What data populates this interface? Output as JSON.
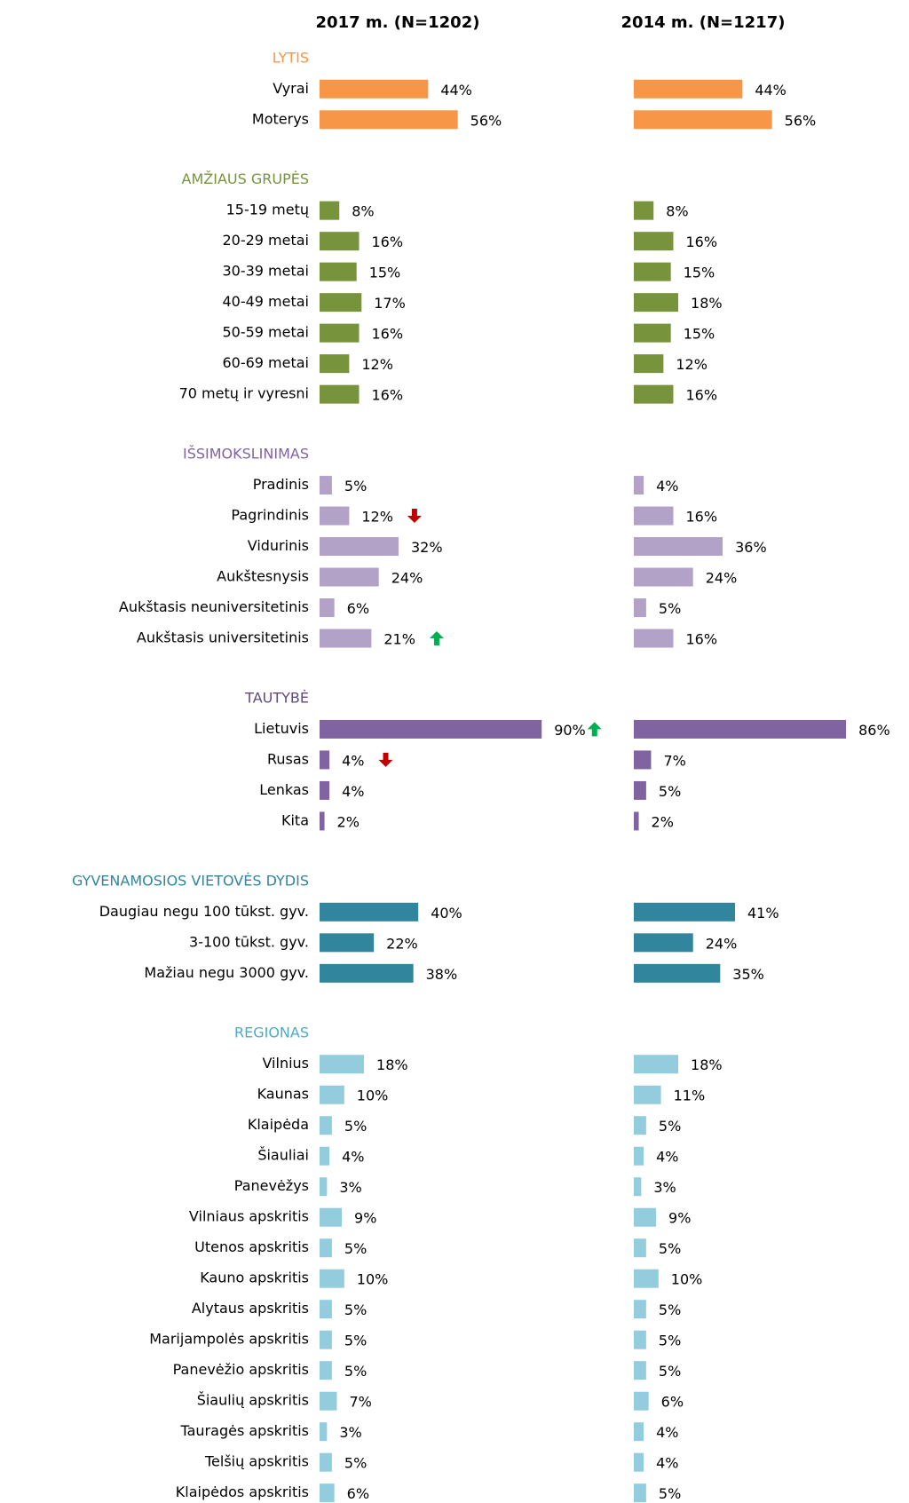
{
  "chart_data": {
    "type": "bar",
    "orientation": "horizontal",
    "columns": [
      "2017 m. (N=1202)",
      "2014 m. (N=1217)"
    ],
    "groups": [
      {
        "title": "LYTIS",
        "title_color": "#f79646",
        "color": "#f79646",
        "categories": [
          "Vyrai",
          "Moterys"
        ],
        "series": [
          {
            "values": [
              44,
              56
            ],
            "value_labels": [
              "44%",
              "56%"
            ],
            "trend": [
              null,
              null
            ]
          },
          {
            "values": [
              44,
              56
            ],
            "value_labels": [
              "44%",
              "56%"
            ]
          }
        ]
      },
      {
        "title": "AMŽIAUS GRUPĖS",
        "title_color": "#77933c",
        "color": "#77933c",
        "categories": [
          "15-19 metų",
          "20-29 metai",
          "30-39 metai",
          "40-49 metai",
          "50-59 metai",
          "60-69 metai",
          "70 metų ir vyresni"
        ],
        "series": [
          {
            "values": [
              8,
              16,
              15,
              17,
              16,
              12,
              16
            ],
            "value_labels": [
              "8%",
              "16%",
              "15%",
              "17%",
              "16%",
              "12%",
              "16%"
            ],
            "trend": [
              null,
              null,
              null,
              null,
              null,
              null,
              null
            ]
          },
          {
            "values": [
              8,
              16,
              15,
              18,
              15,
              12,
              16
            ],
            "value_labels": [
              "8%",
              "16%",
              "15%",
              "18%",
              "15%",
              "12%",
              "16%"
            ]
          }
        ]
      },
      {
        "title": "IŠSIMOKSLINIMAS",
        "title_color": "#8064a2",
        "color": "#b3a2c7",
        "categories": [
          "Pradinis",
          "Pagrindinis",
          "Vidurinis",
          "Aukštesnysis",
          "Aukštasis neuniversitetinis",
          "Aukštasis universitetinis"
        ],
        "series": [
          {
            "values": [
              5,
              12,
              32,
              24,
              6,
              21
            ],
            "value_labels": [
              "5%",
              "12%",
              "32%",
              "24%",
              "6%",
              "21%"
            ],
            "trend": [
              null,
              "down",
              null,
              null,
              null,
              "up"
            ]
          },
          {
            "values": [
              4,
              16,
              36,
              24,
              5,
              16
            ],
            "value_labels": [
              "4%",
              "16%",
              "36%",
              "24%",
              "5%",
              "16%"
            ]
          }
        ]
      },
      {
        "title": "TAUTYBĖ",
        "title_color": "#604a7b",
        "color": "#8064a2",
        "categories": [
          "Lietuvis",
          "Rusas",
          "Lenkas",
          "Kita"
        ],
        "series": [
          {
            "values": [
              90,
              4,
              4,
              2
            ],
            "value_labels": [
              "90%",
              "4%",
              "4%",
              "2%"
            ],
            "trend": [
              "up",
              "down",
              null,
              null
            ]
          },
          {
            "values": [
              86,
              7,
              5,
              2
            ],
            "value_labels": [
              "86%",
              "7%",
              "5%",
              "2%"
            ]
          }
        ]
      },
      {
        "title": "GYVENAMOSIOS VIETOVĖS DYDIS",
        "title_color": "#31859c",
        "color": "#31859c",
        "categories": [
          "Daugiau negu 100 tūkst. gyv.",
          "3-100 tūkst. gyv.",
          "Mažiau negu 3000 gyv."
        ],
        "series": [
          {
            "values": [
              40,
              22,
              38
            ],
            "value_labels": [
              "40%",
              "22%",
              "38%"
            ],
            "trend": [
              null,
              null,
              null
            ]
          },
          {
            "values": [
              41,
              24,
              35
            ],
            "value_labels": [
              "41%",
              "24%",
              "35%"
            ]
          }
        ]
      },
      {
        "title": "REGIONAS",
        "title_color": "#4bacc6",
        "color": "#93cddd",
        "categories": [
          "Vilnius",
          "Kaunas",
          "Klaipėda",
          "Šiauliai",
          "Panevėžys",
          "Vilniaus apskritis",
          "Utenos apskritis",
          "Kauno apskritis",
          "Alytaus apskritis",
          "Marijampolės apskritis",
          "Panevėžio apskritis",
          "Šiaulių apskritis",
          "Tauragės apskritis",
          "Telšių apskritis",
          "Klaipėdos apskritis"
        ],
        "series": [
          {
            "values": [
              18,
              10,
              5,
              4,
              3,
              9,
              5,
              10,
              5,
              5,
              5,
              7,
              3,
              5,
              6
            ],
            "value_labels": [
              "18%",
              "10%",
              "5%",
              "4%",
              "3%",
              "9%",
              "5%",
              "10%",
              "5%",
              "5%",
              "5%",
              "7%",
              "3%",
              "5%",
              "6%"
            ],
            "trend": [
              null,
              null,
              null,
              null,
              null,
              null,
              null,
              null,
              null,
              null,
              null,
              null,
              null,
              null,
              null
            ]
          },
          {
            "values": [
              18,
              11,
              5,
              4,
              3,
              9,
              5,
              10,
              5,
              5,
              5,
              6,
              4,
              4,
              5
            ],
            "value_labels": [
              "18%",
              "11%",
              "5%",
              "4%",
              "3%",
              "9%",
              "5%",
              "10%",
              "5%",
              "5%",
              "5%",
              "6%",
              "4%",
              "4%",
              "5%"
            ]
          }
        ]
      }
    ]
  }
}
